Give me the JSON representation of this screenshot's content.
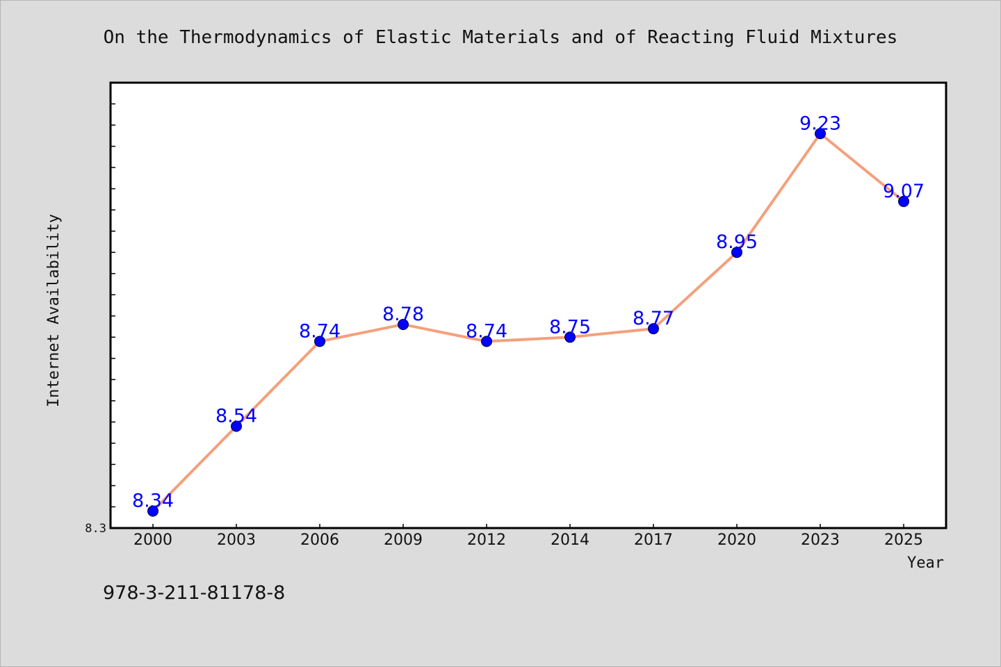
{
  "chart_data": {
    "type": "line",
    "title": "On the Thermodynamics of Elastic Materials and of Reacting Fluid Mixtures",
    "xlabel": "Year",
    "ylabel": "Internet Availability",
    "categories": [
      "2000",
      "2003",
      "2006",
      "2009",
      "2012",
      "2014",
      "2017",
      "2020",
      "2023",
      "2025"
    ],
    "series": [
      {
        "values": [
          8.34,
          8.54,
          8.74,
          8.78,
          8.74,
          8.75,
          8.77,
          8.95,
          9.23,
          9.07
        ]
      }
    ],
    "ylim": [
      8.3,
      9.35
    ],
    "y_tick_labels": [
      "8.3"
    ],
    "grid": false,
    "line_color": "#f4a07c",
    "marker_color": "#0000ff",
    "label_color": "#0000ff",
    "background": "#dcdcdc",
    "plot_background": "#ffffff"
  },
  "caption": "978-3-211-81178-8"
}
